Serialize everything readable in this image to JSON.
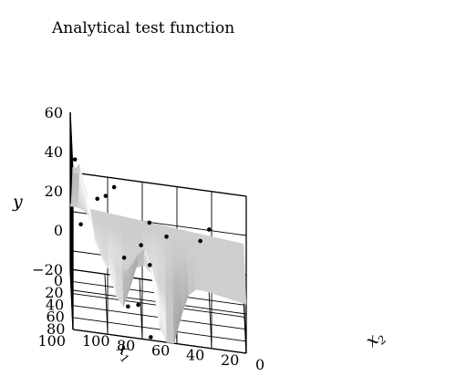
{
  "chart_data": {
    "type": "surface3d",
    "title": "Analytical test function",
    "xlabel": {
      "main": "x",
      "sub": "1"
    },
    "ylabel": {
      "main": "x",
      "sub": "2"
    },
    "zlabel": "y",
    "x_ticks": [
      "0",
      "20",
      "40",
      "60",
      "80",
      "100"
    ],
    "y_ticks": [
      "0",
      "20",
      "40",
      "60",
      "80",
      "100"
    ],
    "z_ticks": [
      "60",
      "40",
      "20",
      "0",
      "−20"
    ],
    "xlim": [
      0,
      100
    ],
    "ylim": [
      0,
      100
    ],
    "zlim": [
      -20,
      60
    ],
    "grid": true,
    "surface_color": "#bdbdbd",
    "sample_points_color": "#000000",
    "sample_points": [
      {
        "x1": 10,
        "x2": 20,
        "y": 13
      },
      {
        "x1": 5,
        "x2": 25,
        "y": 5
      },
      {
        "x1": 35,
        "x2": 45,
        "y": 14
      },
      {
        "x1": 45,
        "x2": 55,
        "y": 23
      },
      {
        "x1": 20,
        "x2": 75,
        "y": 31
      },
      {
        "x1": 30,
        "x2": 80,
        "y": 29
      },
      {
        "x1": 40,
        "x2": 85,
        "y": 30
      },
      {
        "x1": 55,
        "x2": 60,
        "y": 14
      },
      {
        "x1": 60,
        "x2": 55,
        "y": 6
      },
      {
        "x1": 70,
        "x2": 70,
        "y": 11
      },
      {
        "x1": 80,
        "x2": 62,
        "y": -9
      },
      {
        "x1": 85,
        "x2": 68,
        "y": -9
      },
      {
        "x1": 45,
        "x2": 98,
        "y": 50
      },
      {
        "x1": 70,
        "x2": 95,
        "y": 25
      },
      {
        "x1": 95,
        "x2": 55,
        "y": -20
      }
    ]
  }
}
